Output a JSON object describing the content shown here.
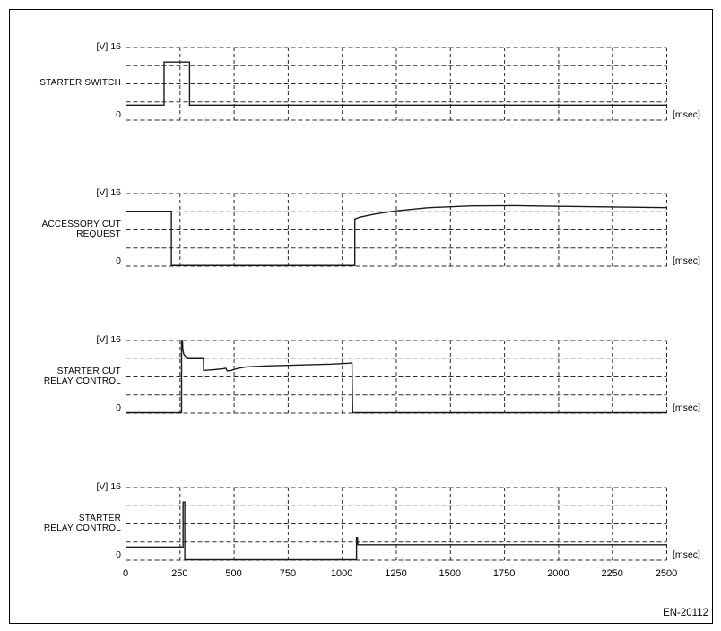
{
  "figure": {
    "code": "EN-20112"
  },
  "axis": {
    "y_unit": "[V]",
    "y_max_label": "16",
    "y_zero_label": "0",
    "x_unit": "[msec]",
    "x_ticks": [
      "0",
      "250",
      "500",
      "750",
      "1000",
      "1250",
      "1500",
      "1750",
      "2000",
      "2250",
      "2500"
    ]
  },
  "chart_data": {
    "type": "line",
    "xlabel": "[msec]",
    "ylabel": "[V]",
    "x_range_msec": [
      0,
      2500
    ],
    "x_tick_step_msec": 250,
    "y_range_volts": [
      0,
      16
    ],
    "y_grid_step_volts": 4,
    "grid": "dashed",
    "legend_position": "none",
    "charts": [
      {
        "name": "STARTER SWITCH",
        "label_lines": [
          "STARTER SWITCH"
        ],
        "points": [
          [
            0,
            3.3
          ],
          [
            176,
            3.3
          ],
          [
            176,
            12.8
          ],
          [
            294,
            12.8
          ],
          [
            294,
            3.3
          ],
          [
            2500,
            3.3
          ]
        ]
      },
      {
        "name": "ACCESSORY CUT REQUEST",
        "label_lines": [
          "ACCESSORY CUT",
          "REQUEST"
        ],
        "points": [
          [
            0,
            12.1
          ],
          [
            210,
            12.1
          ],
          [
            210,
            0.15
          ],
          [
            1058,
            0.15
          ],
          [
            1058,
            10.4
          ],
          [
            1080,
            10.8
          ],
          [
            1150,
            11.5
          ],
          [
            1250,
            12.2
          ],
          [
            1400,
            12.9
          ],
          [
            1600,
            13.3
          ],
          [
            1800,
            13.35
          ],
          [
            2000,
            13.2
          ],
          [
            2250,
            13.05
          ],
          [
            2500,
            12.9
          ]
        ]
      },
      {
        "name": "STARTER CUT RELAY CONTROL",
        "label_lines": [
          "STARTER CUT",
          "RELAY CONTROL"
        ],
        "points": [
          [
            0,
            0.1
          ],
          [
            257,
            0.1
          ],
          [
            257,
            16
          ],
          [
            261,
            16
          ],
          [
            263,
            14
          ],
          [
            267,
            13
          ],
          [
            275,
            12.5
          ],
          [
            288,
            12.2
          ],
          [
            358,
            12.2
          ],
          [
            359,
            9.4
          ],
          [
            410,
            9.6
          ],
          [
            450,
            9.8
          ],
          [
            462,
            9.9
          ],
          [
            468,
            9.3
          ],
          [
            485,
            9.4
          ],
          [
            520,
            9.9
          ],
          [
            560,
            10.2
          ],
          [
            650,
            10.4
          ],
          [
            800,
            10.6
          ],
          [
            950,
            10.8
          ],
          [
            1030,
            11.0
          ],
          [
            1045,
            11.1
          ],
          [
            1048,
            0.1
          ],
          [
            2500,
            0.1
          ]
        ]
      },
      {
        "name": "STARTER RELAY CONTROL",
        "label_lines": [
          "STARTER",
          "RELAY CONTROL"
        ],
        "points": [
          [
            0,
            2.9
          ],
          [
            264,
            2.9
          ],
          [
            264,
            12.8
          ],
          [
            272,
            12.8
          ],
          [
            272,
            0.1
          ],
          [
            1066,
            0.1
          ],
          [
            1066,
            5.0
          ],
          [
            1070,
            5.0
          ],
          [
            1072,
            3.4
          ],
          [
            2500,
            3.4
          ]
        ]
      }
    ]
  },
  "colors": {
    "background": "#ffffff",
    "border": "#000000",
    "grid": "#2a2a2a",
    "signal": "#1a1a1a"
  }
}
